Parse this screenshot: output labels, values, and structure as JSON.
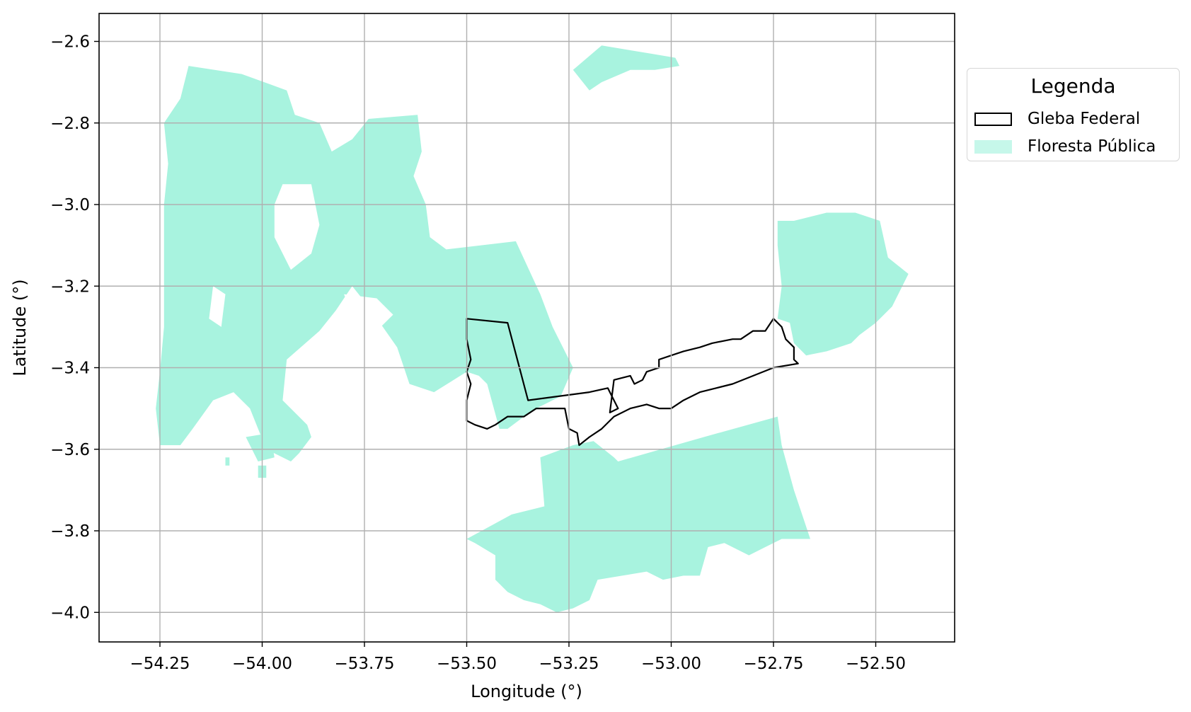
{
  "map": {
    "x_axis": {
      "label": "Longitude (°)",
      "ticks": [
        -54.25,
        -54.0,
        -53.75,
        -53.5,
        -53.25,
        -53.0,
        -52.75,
        -52.5
      ],
      "tick_labels": [
        "−54.25",
        "−54.00",
        "−53.75",
        "−53.50",
        "−53.25",
        "−53.00",
        "−52.75",
        "−52.50"
      ],
      "range": [
        -54.4,
        -52.3
      ]
    },
    "y_axis": {
      "label": "Latitude (°)",
      "ticks": [
        -2.6,
        -2.8,
        -3.0,
        -3.2,
        -3.4,
        -3.6,
        -3.8,
        -4.0
      ],
      "tick_labels": [
        "−2.6",
        "−2.8",
        "−3.0",
        "−3.2",
        "−3.4",
        "−3.6",
        "−3.8",
        "−4.0"
      ],
      "range": [
        -4.07,
        -2.53
      ]
    },
    "grid": true,
    "legend": {
      "title": "Legenda",
      "placement": "outside-upper-right",
      "items": [
        {
          "label": "Gleba Federal",
          "style": "outline",
          "color": "#000000"
        },
        {
          "label": "Floresta Pública",
          "style": "fill",
          "color": "#a8f3df"
        }
      ]
    },
    "colors": {
      "forest_fill": "#a8f3df",
      "gleba_outline": "#000000",
      "grid": "#b0b0b0",
      "background": "#ffffff"
    },
    "layers": {
      "floresta_publica": [
        {
          "name": "north-west-block",
          "lonlat": [
            [
              -54.24,
              -2.8
            ],
            [
              -54.2,
              -2.74
            ],
            [
              -54.18,
              -2.66
            ],
            [
              -54.05,
              -2.68
            ],
            [
              -53.94,
              -2.72
            ],
            [
              -53.92,
              -2.78
            ],
            [
              -53.86,
              -2.8
            ],
            [
              -53.83,
              -2.87
            ],
            [
              -53.78,
              -2.84
            ],
            [
              -53.74,
              -2.79
            ],
            [
              -53.62,
              -2.78
            ],
            [
              -53.61,
              -2.87
            ],
            [
              -53.63,
              -2.93
            ],
            [
              -53.6,
              -3.0
            ],
            [
              -53.59,
              -3.08
            ],
            [
              -53.55,
              -3.11
            ],
            [
              -53.38,
              -3.09
            ],
            [
              -53.32,
              -3.22
            ],
            [
              -53.29,
              -3.3
            ],
            [
              -53.24,
              -3.4
            ],
            [
              -53.27,
              -3.47
            ],
            [
              -53.33,
              -3.5
            ],
            [
              -53.36,
              -3.52
            ],
            [
              -53.4,
              -3.55
            ],
            [
              -53.42,
              -3.55
            ],
            [
              -53.45,
              -3.44
            ],
            [
              -53.47,
              -3.42
            ],
            [
              -53.5,
              -3.41
            ],
            [
              -53.58,
              -3.46
            ],
            [
              -53.64,
              -3.44
            ],
            [
              -53.67,
              -3.35
            ],
            [
              -53.74,
              -3.25
            ],
            [
              -53.78,
              -3.2
            ],
            [
              -53.82,
              -3.26
            ],
            [
              -53.86,
              -3.31
            ],
            [
              -53.94,
              -3.38
            ],
            [
              -53.95,
              -3.48
            ],
            [
              -53.89,
              -3.54
            ],
            [
              -53.88,
              -3.57
            ],
            [
              -53.91,
              -3.61
            ],
            [
              -53.93,
              -3.63
            ],
            [
              -53.99,
              -3.6
            ],
            [
              -54.03,
              -3.5
            ],
            [
              -54.07,
              -3.46
            ],
            [
              -54.12,
              -3.48
            ],
            [
              -54.17,
              -3.55
            ],
            [
              -54.2,
              -3.59
            ],
            [
              -54.25,
              -3.59
            ],
            [
              -54.26,
              -3.5
            ],
            [
              -54.25,
              -3.41
            ],
            [
              -54.24,
              -3.3
            ],
            [
              -54.24,
              -3.13
            ],
            [
              -54.24,
              -3.0
            ],
            [
              -54.23,
              -2.9
            ]
          ]
        },
        {
          "name": "northern-islet",
          "lonlat": [
            [
              -53.24,
              -2.67
            ],
            [
              -53.17,
              -2.61
            ],
            [
              -53.05,
              -2.63
            ],
            [
              -52.99,
              -2.64
            ],
            [
              -52.98,
              -2.66
            ],
            [
              -53.04,
              -2.67
            ],
            [
              -53.1,
              -2.67
            ],
            [
              -53.17,
              -2.7
            ],
            [
              -53.2,
              -2.72
            ]
          ]
        },
        {
          "name": "south-block",
          "lonlat": [
            [
              -53.5,
              -3.82
            ],
            [
              -53.39,
              -3.76
            ],
            [
              -53.31,
              -3.74
            ],
            [
              -53.32,
              -3.62
            ],
            [
              -53.24,
              -3.59
            ],
            [
              -53.19,
              -3.58
            ],
            [
              -53.14,
              -3.62
            ],
            [
              -53.13,
              -3.63
            ],
            [
              -52.92,
              -3.57
            ],
            [
              -52.74,
              -3.52
            ],
            [
              -52.73,
              -3.59
            ],
            [
              -52.7,
              -3.7
            ],
            [
              -52.66,
              -3.82
            ],
            [
              -52.73,
              -3.82
            ],
            [
              -52.77,
              -3.84
            ],
            [
              -52.81,
              -3.86
            ],
            [
              -52.87,
              -3.83
            ],
            [
              -52.91,
              -3.84
            ],
            [
              -52.93,
              -3.91
            ],
            [
              -52.97,
              -3.91
            ],
            [
              -53.02,
              -3.92
            ],
            [
              -53.06,
              -3.9
            ],
            [
              -53.12,
              -3.91
            ],
            [
              -53.18,
              -3.92
            ],
            [
              -53.2,
              -3.97
            ],
            [
              -53.24,
              -3.99
            ],
            [
              -53.28,
              -4.0
            ],
            [
              -53.32,
              -3.98
            ],
            [
              -53.36,
              -3.97
            ],
            [
              -53.4,
              -3.95
            ],
            [
              -53.43,
              -3.92
            ],
            [
              -53.43,
              -3.86
            ],
            [
              -53.48,
              -3.83
            ]
          ]
        },
        {
          "name": "east-block",
          "lonlat": [
            [
              -52.74,
              -3.04
            ],
            [
              -52.7,
              -3.04
            ],
            [
              -52.66,
              -3.03
            ],
            [
              -52.62,
              -3.02
            ],
            [
              -52.55,
              -3.02
            ],
            [
              -52.49,
              -3.04
            ],
            [
              -52.47,
              -3.13
            ],
            [
              -52.42,
              -3.17
            ],
            [
              -52.46,
              -3.25
            ],
            [
              -52.5,
              -3.29
            ],
            [
              -52.54,
              -3.32
            ],
            [
              -52.56,
              -3.34
            ],
            [
              -52.62,
              -3.36
            ],
            [
              -52.67,
              -3.37
            ],
            [
              -52.7,
              -3.34
            ],
            [
              -52.71,
              -3.29
            ],
            [
              -52.74,
              -3.28
            ],
            [
              -52.73,
              -3.2
            ],
            [
              -52.74,
              -3.1
            ]
          ]
        },
        {
          "name": "lower-islet-a",
          "lonlat": [
            [
              -54.04,
              -3.57
            ],
            [
              -53.98,
              -3.56
            ],
            [
              -53.97,
              -3.62
            ],
            [
              -54.01,
              -3.63
            ]
          ]
        },
        {
          "name": "lower-islet-b",
          "lonlat": [
            [
              -54.01,
              -3.64
            ],
            [
              -53.99,
              -3.64
            ],
            [
              -53.99,
              -3.67
            ],
            [
              -54.01,
              -3.67
            ]
          ]
        },
        {
          "name": "lower-islet-c",
          "lonlat": [
            [
              -54.09,
              -3.62
            ],
            [
              -54.08,
              -3.62
            ],
            [
              -54.08,
              -3.64
            ],
            [
              -54.09,
              -3.64
            ]
          ]
        }
      ],
      "floresta_clearings": [
        {
          "lonlat": [
            [
              -53.95,
              -2.95
            ],
            [
              -53.88,
              -2.95
            ],
            [
              -53.86,
              -3.05
            ],
            [
              -53.88,
              -3.12
            ],
            [
              -53.93,
              -3.16
            ],
            [
              -53.97,
              -3.08
            ],
            [
              -53.97,
              -3.0
            ]
          ]
        },
        {
          "lonlat": [
            [
              -53.8,
              -3.22
            ],
            [
              -53.72,
              -3.23
            ],
            [
              -53.68,
              -3.27
            ],
            [
              -53.71,
              -3.3
            ],
            [
              -53.78,
              -3.27
            ]
          ]
        },
        {
          "lonlat": [
            [
              -54.12,
              -3.2
            ],
            [
              -54.09,
              -3.22
            ],
            [
              -54.1,
              -3.3
            ],
            [
              -54.13,
              -3.28
            ]
          ]
        }
      ],
      "gleba_federal": [
        {
          "name": "gleba-outline",
          "lonlat": [
            [
              -53.5,
              -3.28
            ],
            [
              -53.4,
              -3.29
            ],
            [
              -53.35,
              -3.48
            ],
            [
              -53.2,
              -3.46
            ],
            [
              -53.155,
              -3.45
            ],
            [
              -53.15,
              -3.46
            ],
            [
              -53.13,
              -3.5
            ],
            [
              -53.15,
              -3.51
            ],
            [
              -53.14,
              -3.43
            ],
            [
              -53.1,
              -3.42
            ],
            [
              -53.09,
              -3.44
            ],
            [
              -53.07,
              -3.43
            ],
            [
              -53.06,
              -3.41
            ],
            [
              -53.03,
              -3.4
            ],
            [
              -53.03,
              -3.38
            ],
            [
              -53.0,
              -3.37
            ],
            [
              -52.97,
              -3.36
            ],
            [
              -52.93,
              -3.35
            ],
            [
              -52.9,
              -3.34
            ],
            [
              -52.85,
              -3.33
            ],
            [
              -52.83,
              -3.33
            ],
            [
              -52.8,
              -3.31
            ],
            [
              -52.77,
              -3.31
            ],
            [
              -52.75,
              -3.28
            ],
            [
              -52.73,
              -3.3
            ],
            [
              -52.72,
              -3.33
            ],
            [
              -52.7,
              -3.35
            ],
            [
              -52.7,
              -3.38
            ],
            [
              -52.69,
              -3.39
            ],
            [
              -52.75,
              -3.4
            ],
            [
              -52.8,
              -3.42
            ],
            [
              -52.85,
              -3.44
            ],
            [
              -52.89,
              -3.45
            ],
            [
              -52.93,
              -3.46
            ],
            [
              -52.97,
              -3.48
            ],
            [
              -53.0,
              -3.5
            ],
            [
              -53.03,
              -3.5
            ],
            [
              -53.06,
              -3.49
            ],
            [
              -53.1,
              -3.5
            ],
            [
              -53.14,
              -3.52
            ],
            [
              -53.17,
              -3.55
            ],
            [
              -53.2,
              -3.57
            ],
            [
              -53.225,
              -3.59
            ],
            [
              -53.23,
              -3.56
            ],
            [
              -53.25,
              -3.55
            ],
            [
              -53.26,
              -3.5
            ],
            [
              -53.3,
              -3.5
            ],
            [
              -53.33,
              -3.5
            ],
            [
              -53.36,
              -3.52
            ],
            [
              -53.4,
              -3.52
            ],
            [
              -53.43,
              -3.54
            ],
            [
              -53.45,
              -3.55
            ],
            [
              -53.48,
              -3.54
            ],
            [
              -53.5,
              -3.53
            ],
            [
              -53.5,
              -3.48
            ],
            [
              -53.49,
              -3.44
            ],
            [
              -53.5,
              -3.41
            ],
            [
              -53.49,
              -3.38
            ],
            [
              -53.5,
              -3.33
            ]
          ]
        }
      ]
    }
  }
}
